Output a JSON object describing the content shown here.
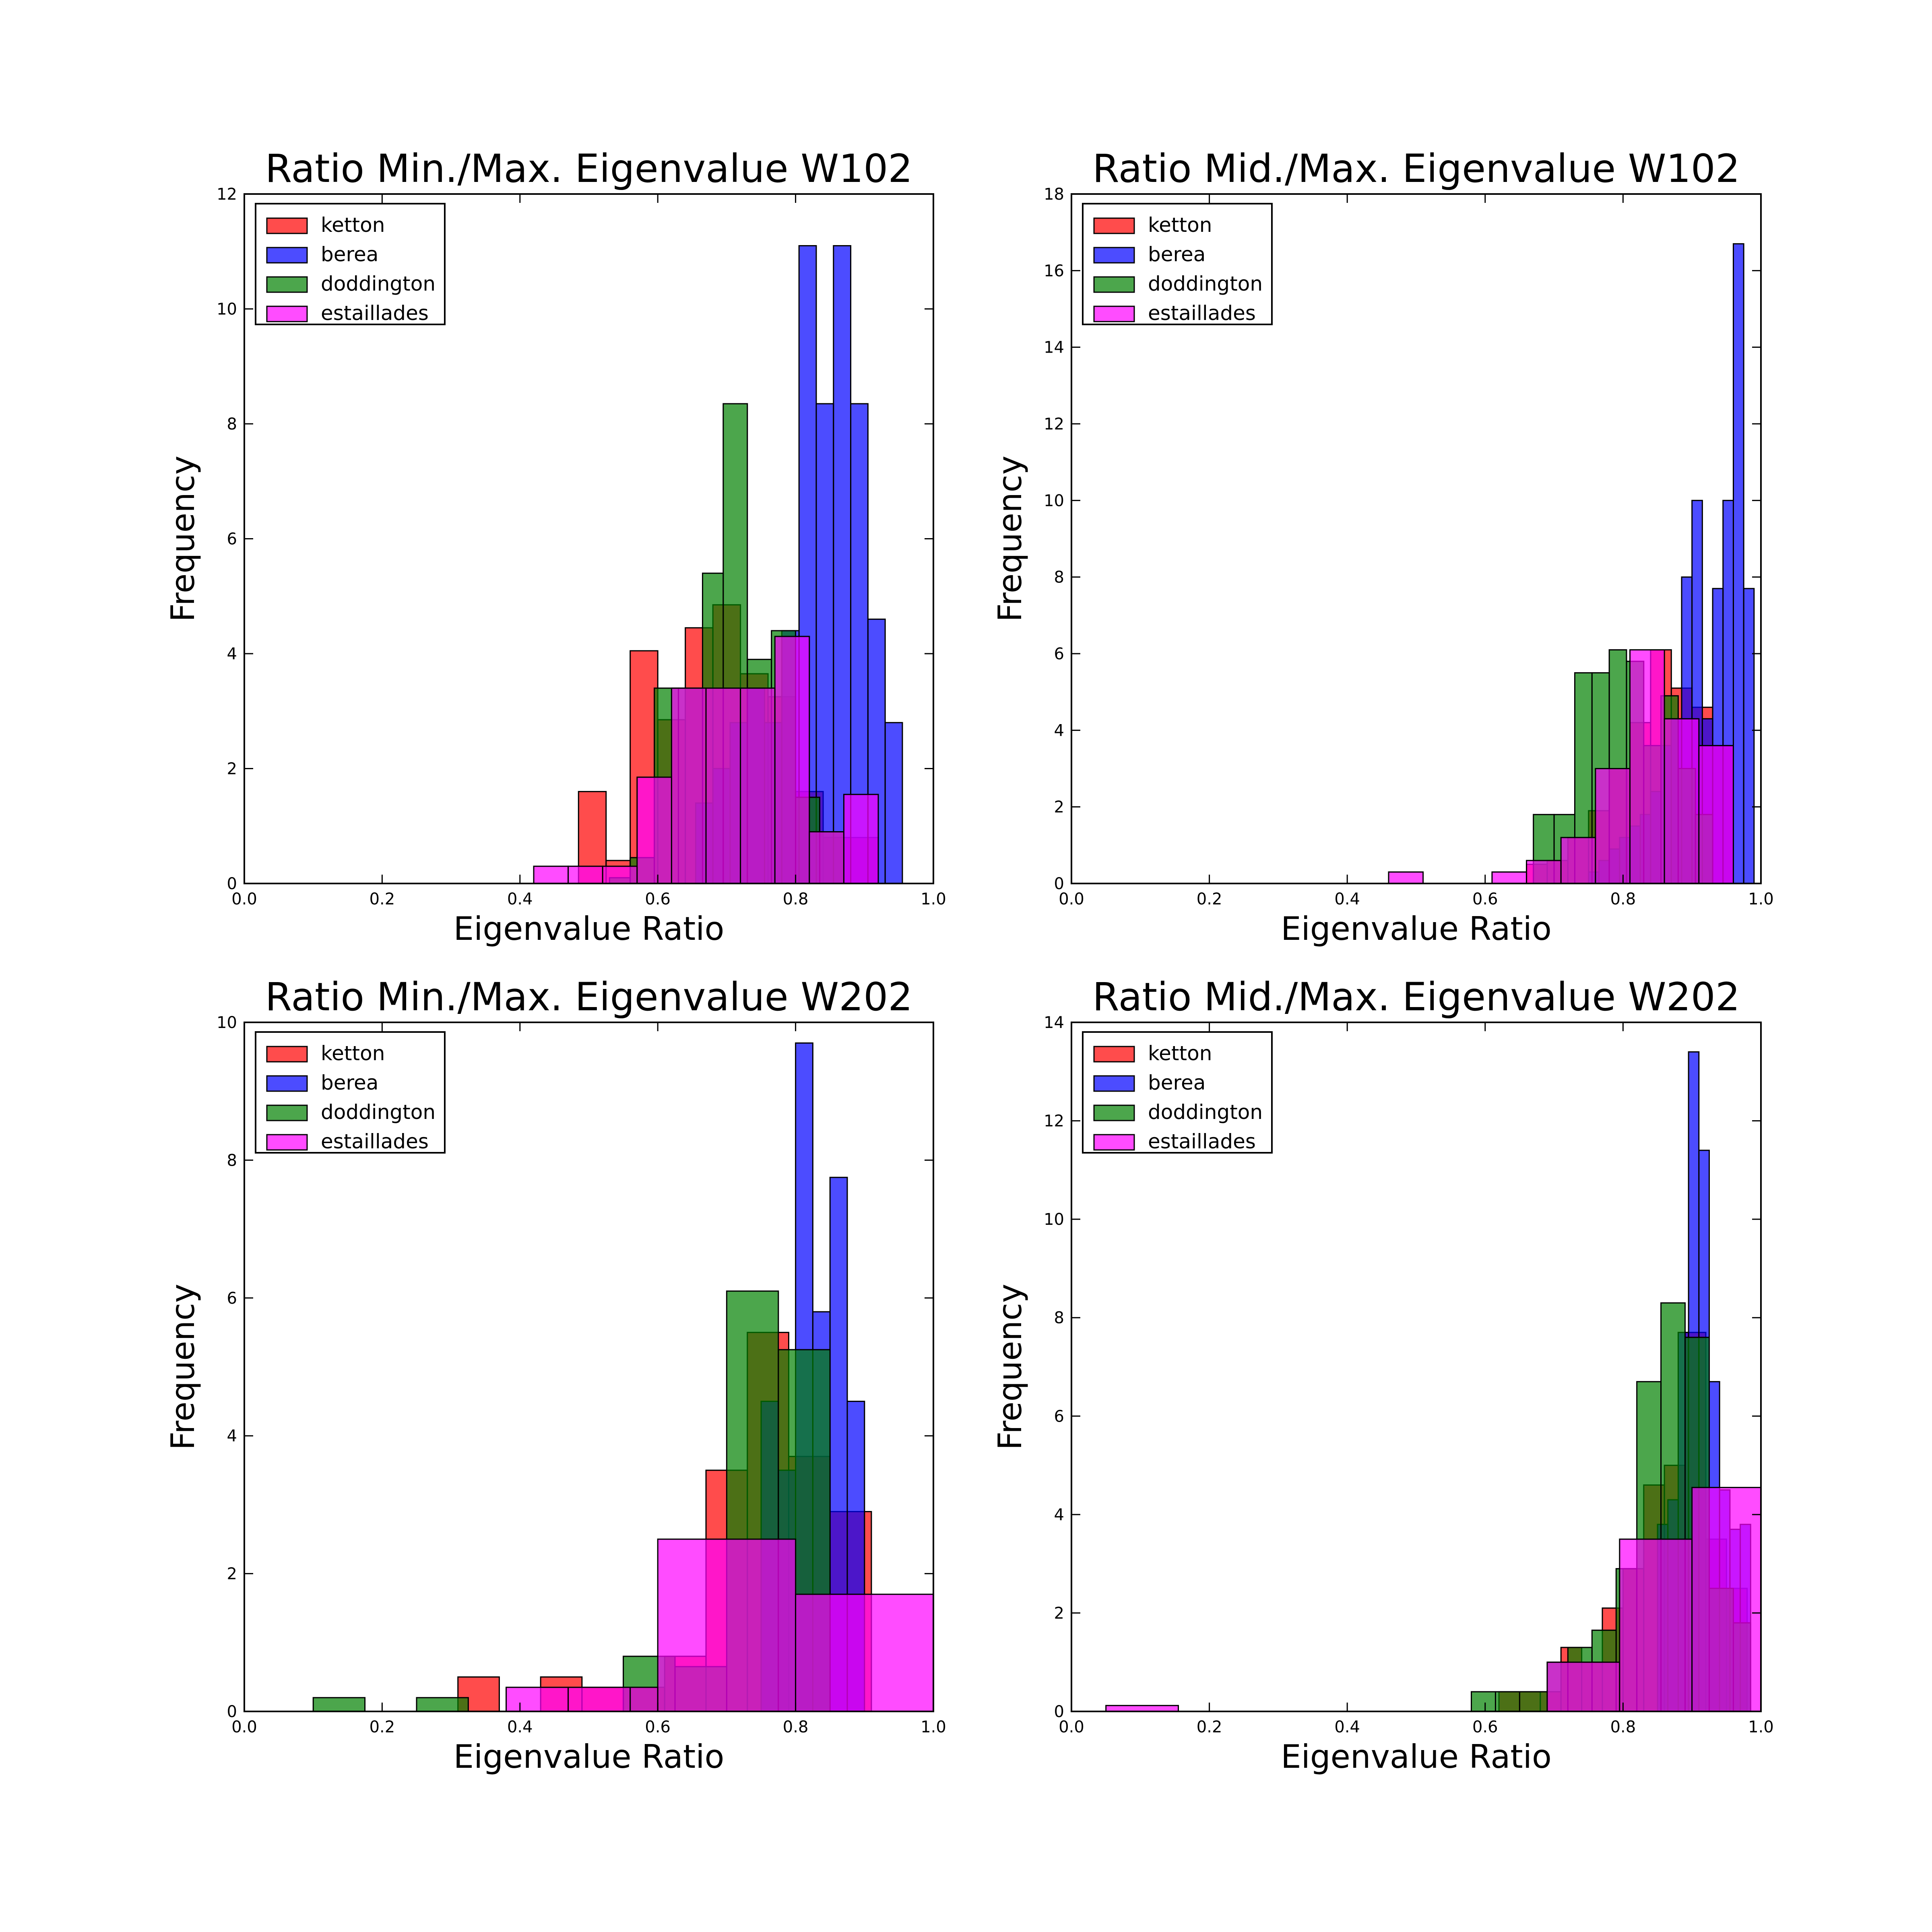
{
  "chart_data": [
    {
      "type": "bar",
      "title": "Ratio Min./Max. Eigenvalue W102",
      "xlabel": "Eigenvalue Ratio",
      "ylabel": "Frequency",
      "xlim": [
        0.0,
        1.0
      ],
      "ylim": [
        0,
        12
      ],
      "xticks": [
        "0.0",
        "0.2",
        "0.4",
        "0.6",
        "0.8",
        "1.0"
      ],
      "yticks": [
        "0",
        "2",
        "4",
        "6",
        "8",
        "10",
        "12"
      ],
      "legend_position": "top-left",
      "series": [
        {
          "name": "ketton",
          "color": "#ff0000",
          "bins": [
            [
              0.485,
              0.525,
              1.6
            ],
            [
              0.525,
              0.56,
              0.4
            ],
            [
              0.56,
              0.6,
              4.05
            ],
            [
              0.6,
              0.64,
              2.85
            ],
            [
              0.64,
              0.68,
              4.45
            ],
            [
              0.68,
              0.72,
              4.85
            ],
            [
              0.72,
              0.76,
              3.65
            ],
            [
              0.76,
              0.8,
              3.25
            ],
            [
              0.8,
              0.84,
              1.6
            ],
            [
              0.84,
              0.88,
              0.8
            ],
            [
              0.88,
              0.92,
              0.8
            ]
          ]
        },
        {
          "name": "berea",
          "color": "#0000ff",
          "bins": [
            [
              0.655,
              0.68,
              1.4
            ],
            [
              0.68,
              0.705,
              2.0
            ],
            [
              0.705,
              0.73,
              2.8
            ],
            [
              0.73,
              0.755,
              3.4
            ],
            [
              0.755,
              0.78,
              2.8
            ],
            [
              0.78,
              0.805,
              4.4
            ],
            [
              0.805,
              0.83,
              11.1
            ],
            [
              0.83,
              0.855,
              8.35
            ],
            [
              0.855,
              0.88,
              11.1
            ],
            [
              0.88,
              0.905,
              8.35
            ],
            [
              0.905,
              0.93,
              4.6
            ],
            [
              0.93,
              0.955,
              2.8
            ]
          ]
        },
        {
          "name": "doddington",
          "color": "#008000",
          "bins": [
            [
              0.53,
              0.56,
              0.1
            ],
            [
              0.56,
              0.595,
              0.45
            ],
            [
              0.595,
              0.63,
              3.4
            ],
            [
              0.63,
              0.665,
              3.4
            ],
            [
              0.665,
              0.695,
              5.4
            ],
            [
              0.695,
              0.73,
              8.35
            ],
            [
              0.73,
              0.765,
              3.9
            ],
            [
              0.765,
              0.8,
              4.4
            ],
            [
              0.8,
              0.835,
              1.5
            ],
            [
              0.835,
              0.87,
              0.9
            ]
          ]
        },
        {
          "name": "estaillades",
          "color": "#ff00ff",
          "bins": [
            [
              0.42,
              0.47,
              0.3
            ],
            [
              0.47,
              0.52,
              0.3
            ],
            [
              0.52,
              0.57,
              0.3
            ],
            [
              0.57,
              0.62,
              1.85
            ],
            [
              0.62,
              0.67,
              3.4
            ],
            [
              0.67,
              0.72,
              3.4
            ],
            [
              0.72,
              0.77,
              3.4
            ],
            [
              0.77,
              0.82,
              4.3
            ],
            [
              0.82,
              0.87,
              0.9
            ],
            [
              0.87,
              0.92,
              1.55
            ]
          ]
        }
      ]
    },
    {
      "type": "bar",
      "title": "Ratio Mid./Max. Eigenvalue W102",
      "xlabel": "Eigenvalue Ratio",
      "ylabel": "Frequency",
      "xlim": [
        0.0,
        1.0
      ],
      "ylim": [
        0,
        18
      ],
      "xticks": [
        "0.0",
        "0.2",
        "0.4",
        "0.6",
        "0.8",
        "1.0"
      ],
      "yticks": [
        "0",
        "2",
        "4",
        "6",
        "8",
        "10",
        "12",
        "14",
        "16",
        "18"
      ],
      "legend_position": "top-left",
      "series": [
        {
          "name": "ketton",
          "color": "#ff0000",
          "bins": [
            [
              0.66,
              0.69,
              0.5
            ],
            [
              0.69,
              0.72,
              0.6
            ],
            [
              0.72,
              0.75,
              1.2
            ],
            [
              0.75,
              0.78,
              1.9
            ],
            [
              0.78,
              0.81,
              3.0
            ],
            [
              0.81,
              0.84,
              4.2
            ],
            [
              0.84,
              0.87,
              6.1
            ],
            [
              0.87,
              0.9,
              5.1
            ],
            [
              0.9,
              0.93,
              4.6
            ],
            [
              0.93,
              0.96,
              3.6
            ]
          ]
        },
        {
          "name": "berea",
          "color": "#0000ff",
          "bins": [
            [
              0.75,
              0.765,
              0.3
            ],
            [
              0.765,
              0.78,
              0.6
            ],
            [
              0.78,
              0.795,
              0.9
            ],
            [
              0.795,
              0.81,
              1.2
            ],
            [
              0.81,
              0.825,
              1.5
            ],
            [
              0.825,
              0.84,
              1.8
            ],
            [
              0.84,
              0.855,
              2.4
            ],
            [
              0.855,
              0.87,
              3.6
            ],
            [
              0.87,
              0.885,
              4.3
            ],
            [
              0.885,
              0.9,
              8.0
            ],
            [
              0.9,
              0.915,
              10.0
            ],
            [
              0.915,
              0.93,
              4.3
            ],
            [
              0.93,
              0.945,
              7.7
            ],
            [
              0.945,
              0.96,
              10.0
            ],
            [
              0.96,
              0.975,
              16.7
            ],
            [
              0.975,
              0.99,
              7.7
            ]
          ]
        },
        {
          "name": "doddington",
          "color": "#008000",
          "bins": [
            [
              0.67,
              0.7,
              1.8
            ],
            [
              0.7,
              0.73,
              1.8
            ],
            [
              0.73,
              0.755,
              5.5
            ],
            [
              0.755,
              0.78,
              5.5
            ],
            [
              0.78,
              0.805,
              6.1
            ],
            [
              0.805,
              0.83,
              5.8
            ],
            [
              0.83,
              0.855,
              3.6
            ],
            [
              0.855,
              0.88,
              4.9
            ],
            [
              0.88,
              0.905,
              3.0
            ],
            [
              0.905,
              0.93,
              1.8
            ]
          ]
        },
        {
          "name": "estaillades",
          "color": "#ff00ff",
          "bins": [
            [
              0.46,
              0.51,
              0.3
            ],
            [
              0.61,
              0.66,
              0.3
            ],
            [
              0.66,
              0.71,
              0.6
            ],
            [
              0.71,
              0.76,
              1.2
            ],
            [
              0.76,
              0.81,
              3.0
            ],
            [
              0.81,
              0.86,
              6.1
            ],
            [
              0.86,
              0.91,
              4.3
            ],
            [
              0.91,
              0.96,
              3.6
            ]
          ]
        }
      ]
    },
    {
      "type": "bar",
      "title": "Ratio Min./Max. Eigenvalue W202",
      "xlabel": "Eigenvalue Ratio",
      "ylabel": "Frequency",
      "xlim": [
        0.0,
        1.0
      ],
      "ylim": [
        0,
        10
      ],
      "xticks": [
        "0.0",
        "0.2",
        "0.4",
        "0.6",
        "0.8",
        "1.0"
      ],
      "yticks": [
        "0",
        "2",
        "4",
        "6",
        "8",
        "10"
      ],
      "legend_position": "top-left",
      "series": [
        {
          "name": "ketton",
          "color": "#ff0000",
          "bins": [
            [
              0.31,
              0.37,
              0.5
            ],
            [
              0.43,
              0.49,
              0.5
            ],
            [
              0.49,
              0.55,
              0.35
            ],
            [
              0.55,
              0.61,
              0.35
            ],
            [
              0.61,
              0.67,
              0.8
            ],
            [
              0.67,
              0.73,
              3.5
            ],
            [
              0.73,
              0.79,
              5.5
            ],
            [
              0.79,
              0.85,
              3.7
            ],
            [
              0.85,
              0.91,
              2.9
            ]
          ]
        },
        {
          "name": "berea",
          "color": "#0000ff",
          "bins": [
            [
              0.75,
              0.775,
              4.5
            ],
            [
              0.775,
              0.8,
              3.5
            ],
            [
              0.8,
              0.825,
              9.7
            ],
            [
              0.825,
              0.85,
              5.8
            ],
            [
              0.85,
              0.875,
              7.75
            ],
            [
              0.875,
              0.9,
              4.5
            ]
          ]
        },
        {
          "name": "doddington",
          "color": "#008000",
          "bins": [
            [
              0.1,
              0.175,
              0.2
            ],
            [
              0.25,
              0.325,
              0.2
            ],
            [
              0.55,
              0.625,
              0.8
            ],
            [
              0.625,
              0.7,
              0.65
            ],
            [
              0.7,
              0.775,
              6.1
            ],
            [
              0.775,
              0.85,
              5.25
            ]
          ]
        },
        {
          "name": "estaillades",
          "color": "#ff00ff",
          "bins": [
            [
              0.38,
              0.47,
              0.35
            ],
            [
              0.47,
              0.56,
              0.35
            ],
            [
              0.56,
              0.6,
              0.35
            ],
            [
              0.6,
              0.8,
              2.5
            ],
            [
              0.8,
              1.0,
              1.7
            ]
          ]
        }
      ]
    },
    {
      "type": "bar",
      "title": "Ratio Mid./Max. Eigenvalue W202",
      "xlabel": "Eigenvalue Ratio",
      "ylabel": "Frequency",
      "xlim": [
        0.0,
        1.0
      ],
      "ylim": [
        0,
        14
      ],
      "xticks": [
        "0.0",
        "0.2",
        "0.4",
        "0.6",
        "0.8",
        "1.0"
      ],
      "yticks": [
        "0",
        "2",
        "4",
        "6",
        "8",
        "10",
        "12",
        "14"
      ],
      "legend_position": "top-left",
      "series": [
        {
          "name": "ketton",
          "color": "#ff0000",
          "bins": [
            [
              0.62,
              0.65,
              0.4
            ],
            [
              0.65,
              0.68,
              0.4
            ],
            [
              0.68,
              0.71,
              0.4
            ],
            [
              0.71,
              0.74,
              1.3
            ],
            [
              0.74,
              0.77,
              1.0
            ],
            [
              0.77,
              0.8,
              2.1
            ],
            [
              0.8,
              0.83,
              2.9
            ],
            [
              0.83,
              0.86,
              4.6
            ],
            [
              0.86,
              0.89,
              5.0
            ],
            [
              0.89,
              0.92,
              7.7
            ],
            [
              0.92,
              0.95,
              3.5
            ],
            [
              0.95,
              0.98,
              2.5
            ]
          ]
        },
        {
          "name": "berea",
          "color": "#0000ff",
          "bins": [
            [
              0.85,
              0.865,
              3.8
            ],
            [
              0.865,
              0.88,
              4.3
            ],
            [
              0.88,
              0.895,
              7.7
            ],
            [
              0.895,
              0.91,
              13.4
            ],
            [
              0.91,
              0.925,
              11.4
            ],
            [
              0.925,
              0.94,
              6.7
            ],
            [
              0.94,
              0.955,
              4.5
            ],
            [
              0.955,
              0.97,
              3.7
            ],
            [
              0.97,
              0.985,
              3.8
            ]
          ]
        },
        {
          "name": "doddington",
          "color": "#008000",
          "bins": [
            [
              0.58,
              0.615,
              0.4
            ],
            [
              0.615,
              0.65,
              0.4
            ],
            [
              0.65,
              0.69,
              0.4
            ],
            [
              0.69,
              0.72,
              1.0
            ],
            [
              0.72,
              0.755,
              1.3
            ],
            [
              0.755,
              0.79,
              1.65
            ],
            [
              0.79,
              0.82,
              2.9
            ],
            [
              0.82,
              0.855,
              6.7
            ],
            [
              0.855,
              0.89,
              8.3
            ],
            [
              0.89,
              0.925,
              7.6
            ],
            [
              0.925,
              0.96,
              2.5
            ],
            [
              0.96,
              0.985,
              1.8
            ]
          ]
        },
        {
          "name": "estaillades",
          "color": "#ff00ff",
          "bins": [
            [
              0.05,
              0.155,
              0.12
            ],
            [
              0.69,
              0.795,
              1.0
            ],
            [
              0.795,
              0.9,
              3.5
            ],
            [
              0.9,
              1.0,
              4.55
            ]
          ]
        }
      ]
    }
  ]
}
